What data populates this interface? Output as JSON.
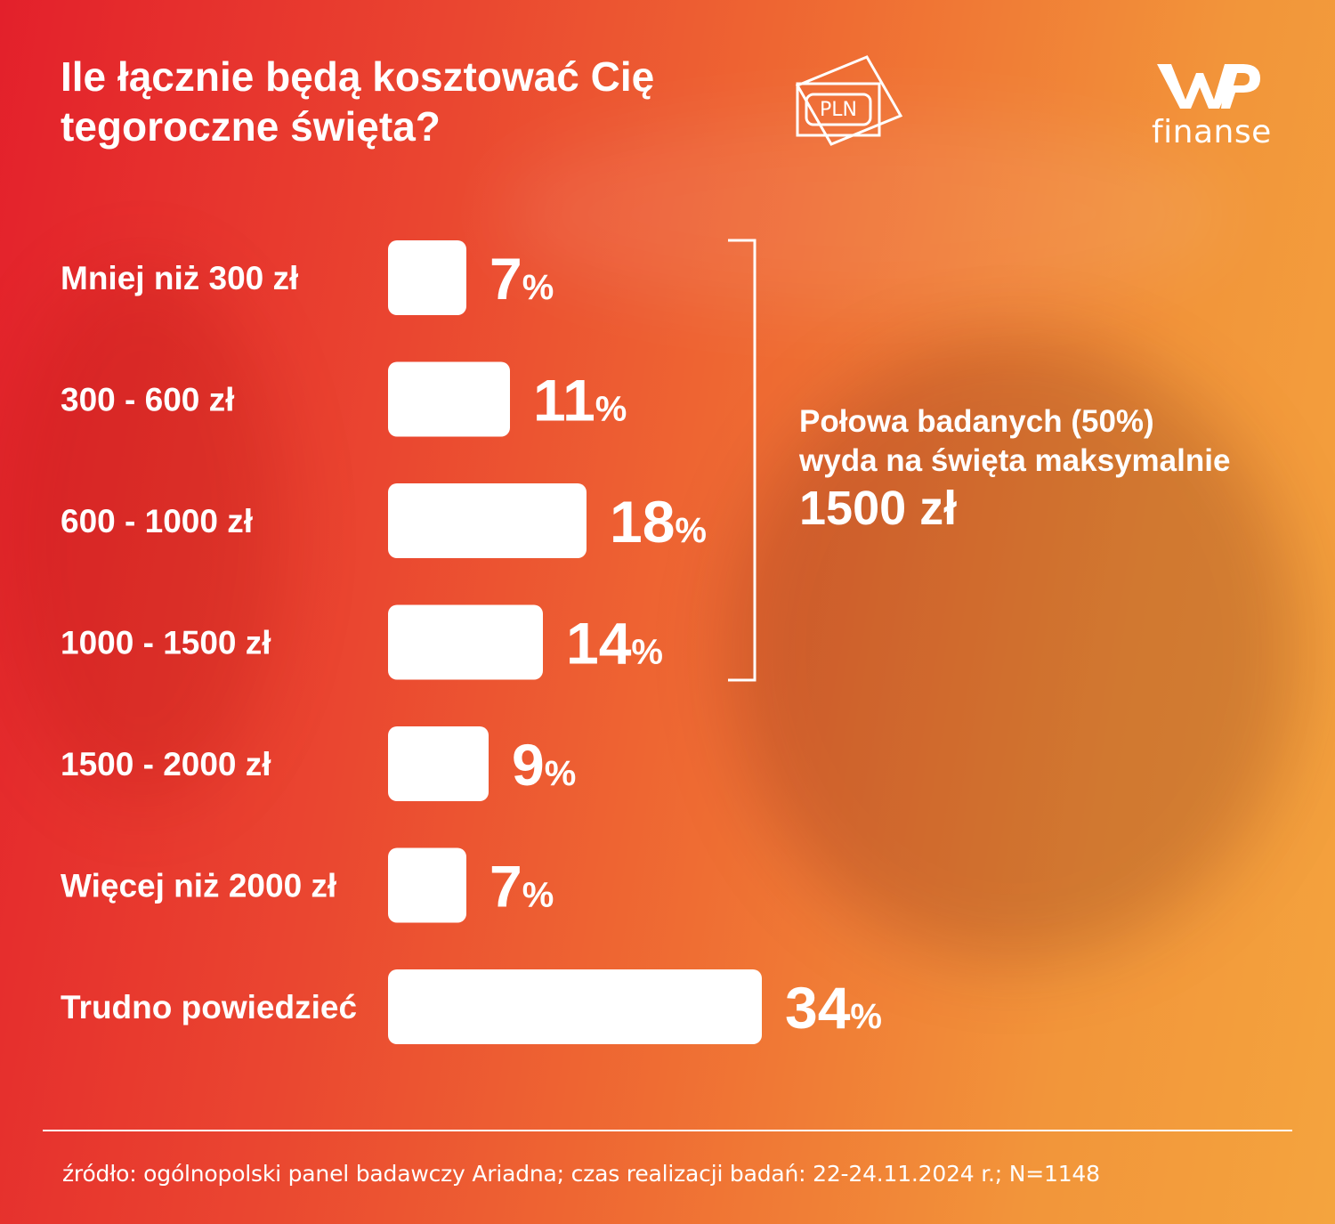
{
  "title": {
    "line1": "Ile łącznie będą kosztować Cię",
    "line2": "tegoroczne święta?"
  },
  "icon": {
    "name": "banknote-icon",
    "text": "PLN"
  },
  "logo": {
    "name": "wp-logo",
    "text": "finanse"
  },
  "colors": {
    "background_start": "#e3202b",
    "background_end": "#f4a43e",
    "bar": "#ffffff",
    "text": "#ffffff"
  },
  "chart_data": {
    "type": "bar",
    "orientation": "horizontal",
    "categories": [
      "Mniej niż 300 zł",
      "300 - 600 zł",
      "600 - 1000 zł",
      "1000 - 1500 zł",
      "1500 - 2000 zł",
      "Więcej niż 2000 zł",
      "Trudno powiedzieć"
    ],
    "values": [
      7,
      11,
      18,
      14,
      9,
      7,
      34
    ],
    "value_suffix": "%",
    "annotation": {
      "line1": "Połowa badanych (50%)",
      "line2": "wyda na święta maksymalnie",
      "line3": "1500 zł"
    }
  },
  "footer": {
    "source": "źródło: ogólnopolski panel badawczy Ariadna; czas realizacji badań: 22-24.11.2024 r.; N=1148"
  }
}
